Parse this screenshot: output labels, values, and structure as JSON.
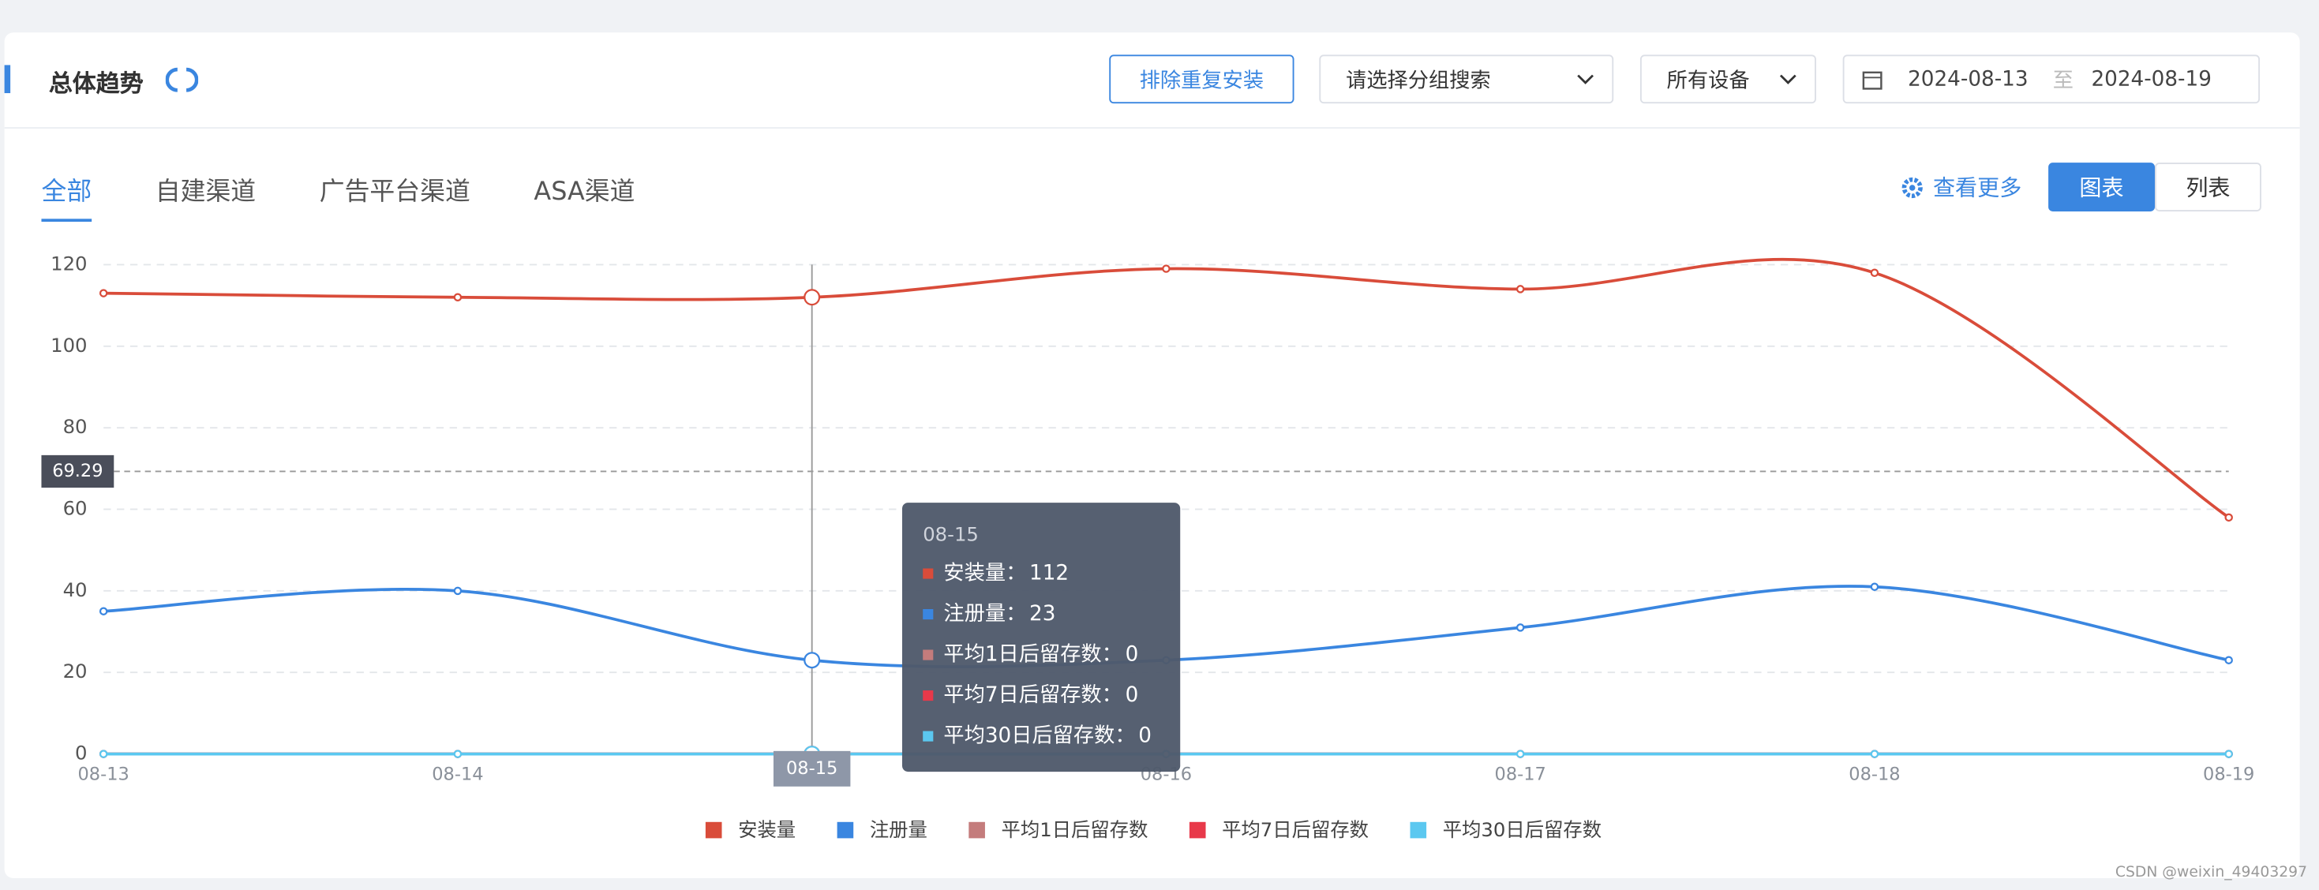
{
  "header": {
    "title": "总体趋势",
    "dedupe_button": "排除重复安装",
    "group_select": "请选择分组搜索",
    "device_select": "所有设备",
    "date_start": "2024-08-13",
    "date_sep": "至",
    "date_end": "2024-08-19"
  },
  "tabs": {
    "items": [
      "全部",
      "自建渠道",
      "广告平台渠道",
      "ASA渠道"
    ],
    "active": 0
  },
  "view_more": "查看更多",
  "view_toggle": {
    "items": [
      "图表",
      "列表"
    ],
    "active": 0
  },
  "chart_data": {
    "type": "line",
    "categories": [
      "08-13",
      "08-14",
      "08-15",
      "08-16",
      "08-17",
      "08-18",
      "08-19"
    ],
    "series": [
      {
        "name": "安装量",
        "color": "#d94c3a",
        "values": [
          113,
          112,
          112,
          119,
          114,
          118,
          58
        ]
      },
      {
        "name": "注册量",
        "color": "#3a86e0",
        "values": [
          35,
          40,
          23,
          23,
          31,
          41,
          23
        ]
      },
      {
        "name": "平均1日后留存数",
        "color": "#c47c7c",
        "values": [
          0,
          0,
          0,
          0,
          0,
          0,
          0
        ]
      },
      {
        "name": "平均7日后留存数",
        "color": "#e8394a",
        "values": [
          0,
          0,
          0,
          0,
          0,
          0,
          0
        ]
      },
      {
        "name": "平均30日后留存数",
        "color": "#5bc8f0",
        "values": [
          0,
          0,
          0,
          0,
          0,
          0,
          0
        ]
      }
    ],
    "ylim": [
      0,
      120
    ],
    "yticks": [
      0,
      20,
      40,
      60,
      80,
      100,
      120
    ],
    "grid": true,
    "reference_line": 69.29,
    "axis_pointer": "08-15",
    "tooltip": {
      "title": "08-15",
      "items": [
        {
          "label": "安装量：",
          "value": 112
        },
        {
          "label": "注册量：",
          "value": 23
        },
        {
          "label": "平均1日后留存数：",
          "value": 0
        },
        {
          "label": "平均7日后留存数：",
          "value": 0
        },
        {
          "label": "平均30日后留存数：",
          "value": 0
        }
      ]
    }
  },
  "watermark": "CSDN @weixin_49403297"
}
